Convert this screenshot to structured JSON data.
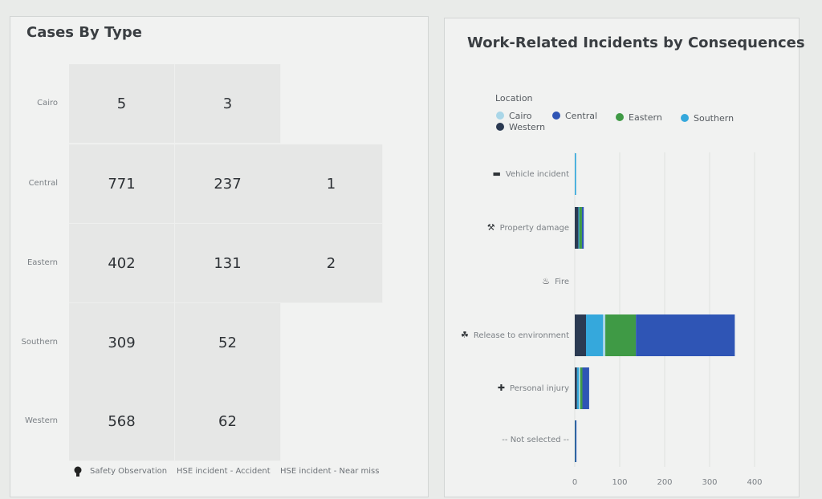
{
  "chart_data": [
    {
      "type": "heatmap",
      "title": "Cases By Type",
      "rows": [
        "Cairo",
        "Central",
        "Eastern",
        "Southern",
        "Western"
      ],
      "columns": [
        "Safety Observation",
        "HSE incident - Accident",
        "HSE incident - Near miss"
      ],
      "values": [
        [
          5,
          3,
          null
        ],
        [
          771,
          237,
          1
        ],
        [
          402,
          131,
          2
        ],
        [
          309,
          52,
          null
        ],
        [
          568,
          62,
          null
        ]
      ]
    },
    {
      "type": "bar",
      "orientation": "horizontal",
      "stacked": true,
      "title": "Work-Related Incidents by Consequences",
      "legend_title": "Location",
      "categories": [
        "Vehicle incident",
        "Property damage",
        "Fire",
        "Release to environment",
        "Personal injury",
        "-- Not selected --"
      ],
      "category_icons": [
        "bed-icon",
        "wrench-icon",
        "fire-icon",
        "leaf-shield-icon",
        "first-aid-kit-icon",
        ""
      ],
      "series": [
        {
          "name": "Western",
          "color": "#2b3a52",
          "values": [
            0,
            8,
            0,
            25,
            5,
            1
          ]
        },
        {
          "name": "Southern",
          "color": "#35a8dc",
          "values": [
            3,
            2,
            0,
            38,
            4,
            1
          ]
        },
        {
          "name": "Cairo",
          "color": "#a9d6e8",
          "values": [
            0,
            0,
            0,
            5,
            3,
            0
          ]
        },
        {
          "name": "Eastern",
          "color": "#3f9a45",
          "values": [
            0,
            6,
            0,
            68,
            5,
            0
          ]
        },
        {
          "name": "Central",
          "color": "#2f55b5",
          "values": [
            0,
            4,
            0,
            220,
            15,
            1
          ]
        }
      ],
      "legend_order": [
        "Cairo",
        "Central",
        "Eastern",
        "Southern",
        "Western"
      ],
      "xlim": [
        0,
        400
      ],
      "xticks": [
        0,
        100,
        200,
        300,
        400
      ],
      "grid": true,
      "legend_position": "top-left"
    }
  ]
}
